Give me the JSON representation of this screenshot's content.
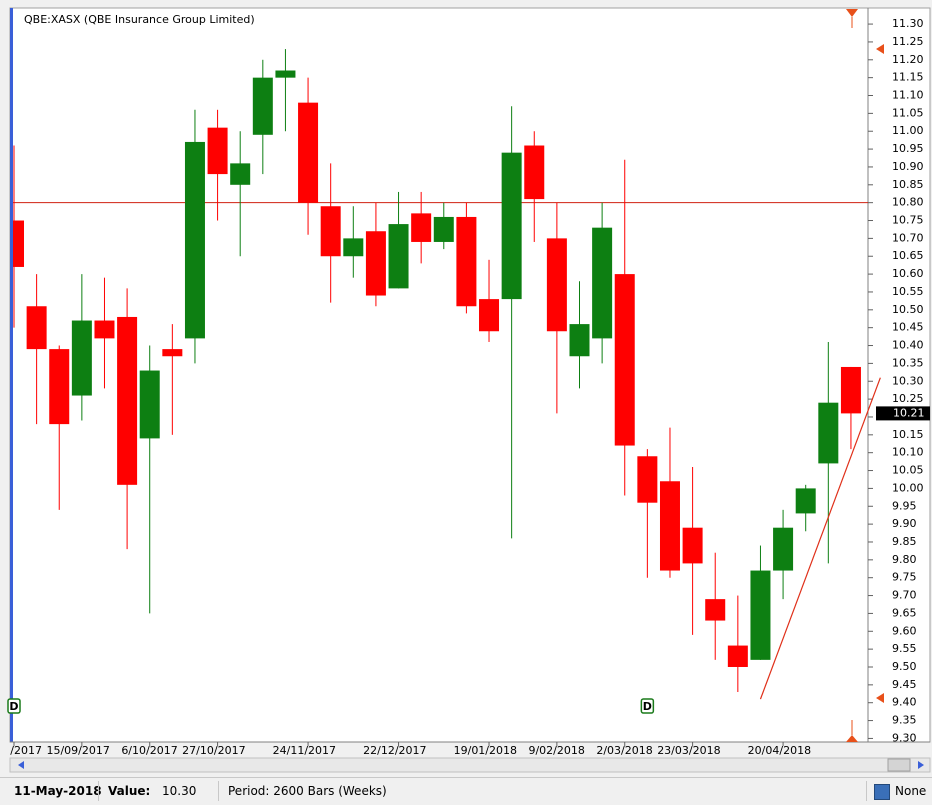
{
  "chart_data": {
    "type": "candlestick",
    "title": "QBE:XASX (QBE Insurance Group Limited)",
    "categories": [
      "/2017",
      null,
      null,
      "15/09/2017",
      null,
      null,
      "6/10/2017",
      null,
      null,
      "27/10/2017",
      null,
      null,
      null,
      "24/11/2017",
      null,
      null,
      null,
      "22/12/2017",
      null,
      null,
      null,
      "19/01/2018",
      null,
      null,
      "9/02/2018",
      null,
      null,
      "2/03/2018",
      null,
      null,
      "23/03/2018",
      null,
      null,
      null,
      "20/04/2018",
      null,
      null,
      null
    ],
    "open": [
      10.75,
      10.51,
      10.39,
      10.26,
      10.47,
      10.48,
      10.14,
      10.39,
      10.42,
      11.01,
      10.85,
      10.99,
      11.15,
      11.08,
      10.79,
      10.65,
      10.72,
      10.56,
      10.77,
      10.69,
      10.76,
      10.53,
      10.53,
      10.96,
      10.7,
      10.37,
      10.42,
      10.6,
      10.09,
      10.02,
      9.89,
      9.69,
      9.56,
      9.52,
      9.77,
      9.93,
      10.07,
      10.34
    ],
    "high": [
      10.96,
      10.6,
      10.4,
      10.6,
      10.59,
      10.56,
      10.4,
      10.46,
      11.06,
      11.06,
      11.0,
      11.2,
      11.23,
      11.15,
      10.91,
      10.79,
      10.8,
      10.83,
      10.83,
      10.8,
      10.8,
      10.64,
      11.07,
      11.0,
      10.8,
      10.58,
      10.8,
      10.92,
      10.11,
      10.17,
      10.06,
      9.82,
      9.7,
      9.84,
      9.94,
      10.01,
      10.41,
      10.34
    ],
    "low": [
      10.45,
      10.18,
      9.94,
      10.19,
      10.28,
      9.83,
      9.65,
      10.15,
      10.35,
      10.75,
      10.65,
      10.88,
      11.0,
      10.71,
      10.52,
      10.59,
      10.51,
      10.56,
      10.63,
      10.67,
      10.49,
      10.41,
      9.86,
      10.69,
      10.21,
      10.28,
      10.35,
      9.98,
      9.75,
      9.75,
      9.59,
      9.52,
      9.43,
      9.52,
      9.69,
      9.88,
      9.79,
      10.11
    ],
    "close": [
      10.62,
      10.39,
      10.18,
      10.47,
      10.42,
      10.01,
      10.33,
      10.37,
      10.97,
      10.88,
      10.91,
      11.15,
      11.17,
      10.8,
      10.65,
      10.7,
      10.54,
      10.74,
      10.69,
      10.76,
      10.51,
      10.44,
      10.94,
      10.81,
      10.44,
      10.46,
      10.73,
      10.12,
      9.96,
      9.77,
      9.79,
      9.63,
      9.5,
      9.77,
      9.89,
      10.0,
      10.24,
      10.21
    ],
    "up_color": "#0d7f12",
    "down_color": "#ff0000",
    "ylim": [
      9.29,
      11.345
    ],
    "yticks": [
      {
        "value": 9.3,
        "label": "9.30"
      },
      {
        "value": 9.35,
        "label": "9.35"
      },
      {
        "value": 9.4,
        "label": "9.40"
      },
      {
        "value": 9.45,
        "label": "9.45"
      },
      {
        "value": 9.5,
        "label": "9.50"
      },
      {
        "value": 9.55,
        "label": "9.55"
      },
      {
        "value": 9.6,
        "label": "9.60"
      },
      {
        "value": 9.65,
        "label": "9.65"
      },
      {
        "value": 9.7,
        "label": "9.70"
      },
      {
        "value": 9.75,
        "label": "9.75"
      },
      {
        "value": 9.8,
        "label": "9.80"
      },
      {
        "value": 9.85,
        "label": "9.85"
      },
      {
        "value": 9.9,
        "label": "9.90"
      },
      {
        "value": 9.95,
        "label": "9.95"
      },
      {
        "value": 10,
        "label": "10.00"
      },
      {
        "value": 10.05,
        "label": "10.05"
      },
      {
        "value": 10.1,
        "label": "10.10"
      },
      {
        "value": 10.15,
        "label": "10.15"
      },
      {
        "value": 10.2,
        "label": "10.20"
      },
      {
        "value": 10.25,
        "label": "10.25"
      },
      {
        "value": 10.3,
        "label": "10.30"
      },
      {
        "value": 10.35,
        "label": "10.35"
      },
      {
        "value": 10.4,
        "label": "10.40"
      },
      {
        "value": 10.45,
        "label": "10.45"
      },
      {
        "value": 10.5,
        "label": "10.50"
      },
      {
        "value": 10.55,
        "label": "10.55"
      },
      {
        "value": 10.6,
        "label": "10.60"
      },
      {
        "value": 10.65,
        "label": "10.65"
      },
      {
        "value": 10.7,
        "label": "10.70"
      },
      {
        "value": 10.75,
        "label": "10.75"
      },
      {
        "value": 10.8,
        "label": "10.80"
      },
      {
        "value": 10.85,
        "label": "10.85"
      },
      {
        "value": 10.9,
        "label": "10.90"
      },
      {
        "value": 10.95,
        "label": "10.95"
      },
      {
        "value": 11,
        "label": "11.00"
      },
      {
        "value": 11.05,
        "label": "11.05"
      },
      {
        "value": 11.1,
        "label": "11.10"
      },
      {
        "value": 11.15,
        "label": "11.15"
      },
      {
        "value": 11.2,
        "label": "11.20"
      },
      {
        "value": 11.25,
        "label": "11.25"
      },
      {
        "value": 11.3,
        "label": "11.30"
      }
    ],
    "horizontal_line": {
      "value": 10.8,
      "color": "#d02010"
    },
    "trend_line": {
      "x": [
        33,
        38.3
      ],
      "y": [
        9.41,
        10.31
      ],
      "color": "#e0301a"
    },
    "markers": [
      {
        "label": "D",
        "index": 0
      },
      {
        "label": "D",
        "index": 28
      }
    ]
  },
  "status_bar": {
    "date": "11-May-2018",
    "value_label": "Value:",
    "value": "10.30",
    "period": "Period: 2600 Bars (Weeks)",
    "mode": "None"
  }
}
